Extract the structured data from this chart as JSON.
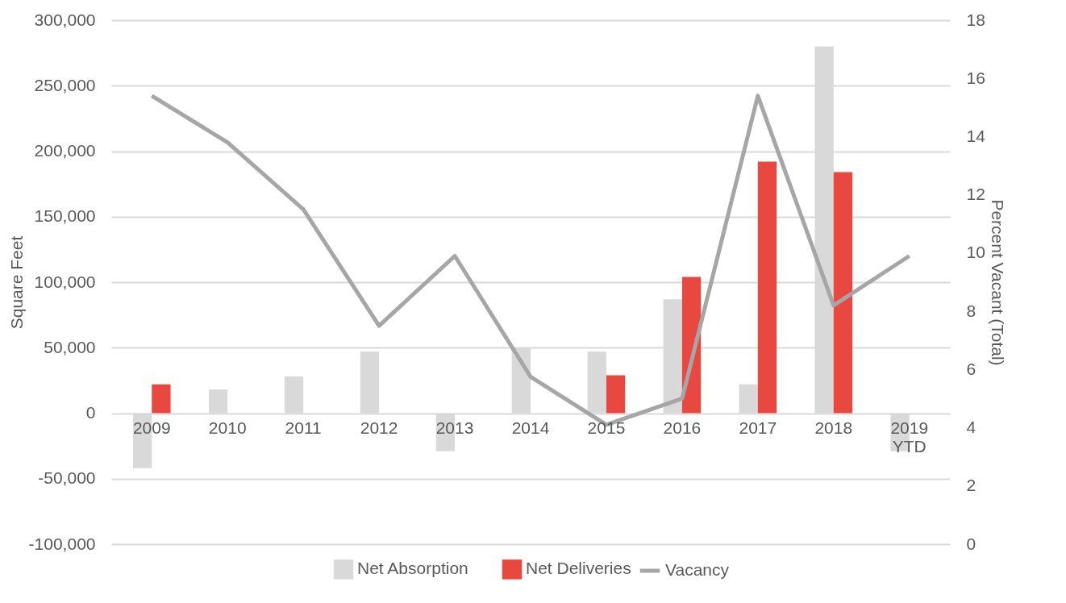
{
  "chart_data": {
    "type": "bar",
    "categories": [
      "2009",
      "2010",
      "2011",
      "2012",
      "2013",
      "2014",
      "2015",
      "2016",
      "2017",
      "2018",
      "2019\nYTD"
    ],
    "ylabel": "Square Feet",
    "y2label": "Percent Vacant (Total)",
    "ylim": [
      -100000,
      300000
    ],
    "yticks": [
      {
        "value": -100000,
        "label": "-100,000"
      },
      {
        "value": -50000,
        "label": "-50,000"
      },
      0,
      {
        "value": 50000,
        "label": "50,000"
      },
      {
        "value": 100000,
        "label": "100,000"
      },
      {
        "value": 150000,
        "label": "150,000"
      },
      {
        "value": 200000,
        "label": "200,000"
      },
      {
        "value": 250000,
        "label": "250,000"
      },
      {
        "value": 300000,
        "label": "300,000"
      }
    ],
    "y2lim": [
      0,
      18
    ],
    "y2ticks": [
      0,
      2,
      4,
      6,
      8,
      10,
      12,
      14,
      16,
      18
    ],
    "grid": "y",
    "legend": "bottom",
    "series": [
      {
        "name": "Net Absorption",
        "color": "#d9d9d9",
        "values": [
          -42000,
          18000,
          28000,
          47000,
          -29000,
          50000,
          47000,
          87000,
          22000,
          280000,
          -29000
        ]
      },
      {
        "name": "Net Deliveries",
        "color": "#e8483f",
        "values": [
          22000,
          null,
          null,
          null,
          null,
          null,
          29000,
          104000,
          192000,
          184000,
          null
        ]
      },
      {
        "name": "Vacancy",
        "type": "line",
        "axis": "y2",
        "color": "#a6a6a6",
        "values": [
          15.4,
          13.8,
          11.5,
          7.5,
          9.9,
          5.75,
          4.1,
          5.0,
          15.4,
          8.2,
          9.9
        ]
      }
    ]
  }
}
